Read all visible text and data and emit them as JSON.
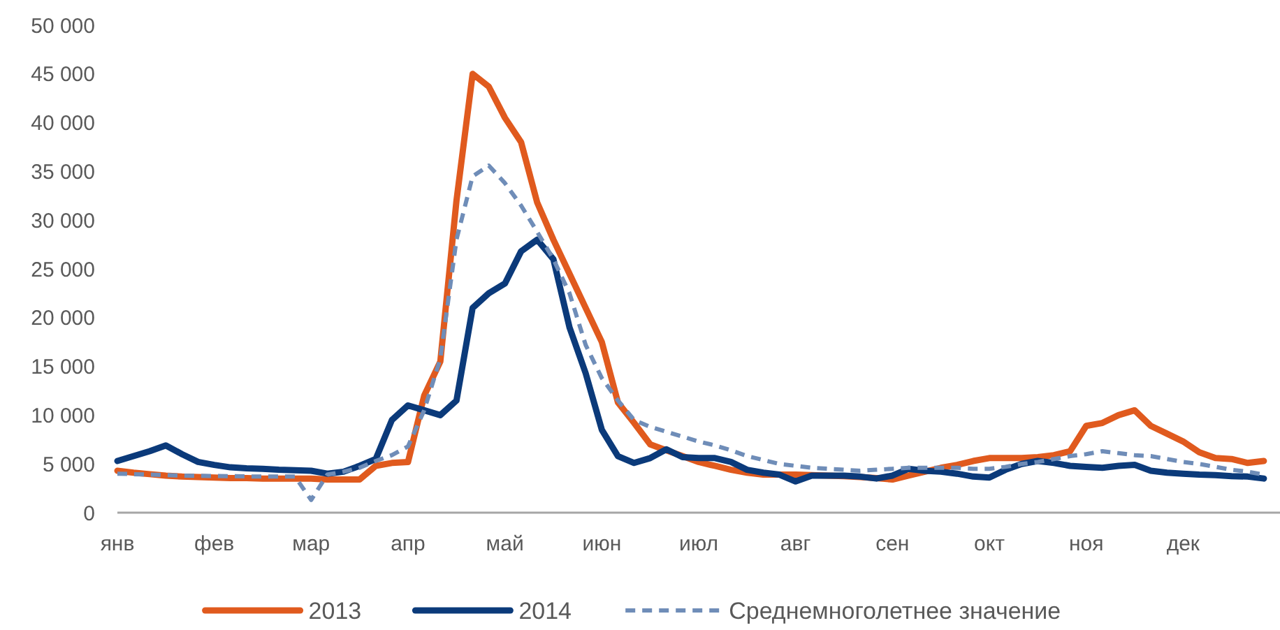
{
  "chart_data": {
    "type": "line",
    "ylim": [
      0,
      50000
    ],
    "categories": [
      "янв",
      null,
      null,
      null,
      null,
      null,
      "фев",
      null,
      null,
      null,
      null,
      null,
      "мар",
      null,
      null,
      null,
      null,
      null,
      "апр",
      null,
      null,
      null,
      null,
      null,
      "май",
      null,
      null,
      null,
      null,
      null,
      "июн",
      null,
      null,
      null,
      null,
      null,
      "июл",
      null,
      null,
      null,
      null,
      null,
      "авг",
      null,
      null,
      null,
      null,
      null,
      "сен",
      null,
      null,
      null,
      null,
      null,
      "окт",
      null,
      null,
      null,
      null,
      null,
      "ноя",
      null,
      null,
      null,
      null,
      null,
      "дек",
      null,
      null,
      null,
      null,
      null
    ],
    "yticks": [
      0,
      {
        "value": 5000,
        "label": "5 000"
      },
      {
        "value": 10000,
        "label": "10 000"
      },
      {
        "value": 15000,
        "label": "15 000"
      },
      {
        "value": 20000,
        "label": "20 000"
      },
      {
        "value": 25000,
        "label": "25 000"
      },
      {
        "value": 30000,
        "label": "30 000"
      },
      {
        "value": 35000,
        "label": "35 000"
      },
      {
        "value": 40000,
        "label": "40 000"
      },
      {
        "value": 45000,
        "label": "45 000"
      },
      {
        "value": 50000,
        "label": "50 000"
      }
    ],
    "grid": false,
    "legend": "bottom",
    "marker": "none",
    "series": [
      {
        "name": "2013",
        "color": "#e05a1e",
        "line_style": "solid",
        "values": [
          4300,
          4100,
          3950,
          3800,
          3700,
          3650,
          3600,
          3550,
          3550,
          3500,
          3500,
          3500,
          3500,
          3400,
          3400,
          3400,
          4800,
          5100,
          5200,
          12000,
          15500,
          32000,
          45000,
          43700,
          40500,
          38000,
          31800,
          28000,
          24500,
          21000,
          17500,
          11300,
          9200,
          7000,
          6400,
          5800,
          5200,
          4800,
          4400,
          4100,
          3900,
          3900,
          3900,
          3850,
          3800,
          3750,
          3650,
          3550,
          3400,
          3800,
          4200,
          4600,
          4900,
          5300,
          5600,
          5600,
          5600,
          5700,
          5900,
          6300,
          8900,
          9200,
          10000,
          10500,
          8900,
          8100,
          7300,
          6200,
          5600,
          5500,
          5100,
          5300
        ]
      },
      {
        "name": "2014",
        "color": "#0b3a7a",
        "line_style": "solid",
        "values": [
          5300,
          5800,
          6300,
          6900,
          6000,
          5200,
          4900,
          4650,
          4550,
          4500,
          4400,
          4350,
          4300,
          4000,
          4200,
          4800,
          5500,
          9500,
          11000,
          10500,
          10000,
          11500,
          21000,
          22500,
          23500,
          26800,
          28000,
          26000,
          19000,
          14300,
          8500,
          5800,
          5100,
          5600,
          6500,
          5700,
          5600,
          5600,
          5200,
          4400,
          4100,
          3900,
          3200,
          3800,
          3800,
          3800,
          3700,
          3500,
          3800,
          4500,
          4300,
          4200,
          4000,
          3700,
          3600,
          4400,
          5000,
          5300,
          5100,
          4800,
          4700,
          4600,
          4800,
          4900,
          4300,
          4100,
          4000,
          3900,
          3850,
          3750,
          3700,
          3500
        ]
      },
      {
        "name": "Среднемноголетнее значение",
        "color": "#6f8db8",
        "line_style": "dashed",
        "values": [
          4000,
          3950,
          3900,
          3850,
          3800,
          3780,
          3760,
          3740,
          3720,
          3700,
          3700,
          3700,
          1300,
          3900,
          4200,
          4600,
          5300,
          5900,
          6800,
          10500,
          15800,
          28000,
          34500,
          35600,
          33800,
          31500,
          28800,
          26000,
          22500,
          17200,
          13800,
          11500,
          9500,
          8800,
          8300,
          7800,
          7300,
          6900,
          6400,
          5800,
          5400,
          5000,
          4800,
          4600,
          4500,
          4400,
          4300,
          4400,
          4500,
          4600,
          4600,
          4600,
          4600,
          4500,
          4500,
          4700,
          5000,
          5200,
          5500,
          5800,
          6000,
          6300,
          6100,
          5900,
          5800,
          5500,
          5200,
          5000,
          4700,
          4400,
          4200,
          3900
        ]
      }
    ]
  }
}
